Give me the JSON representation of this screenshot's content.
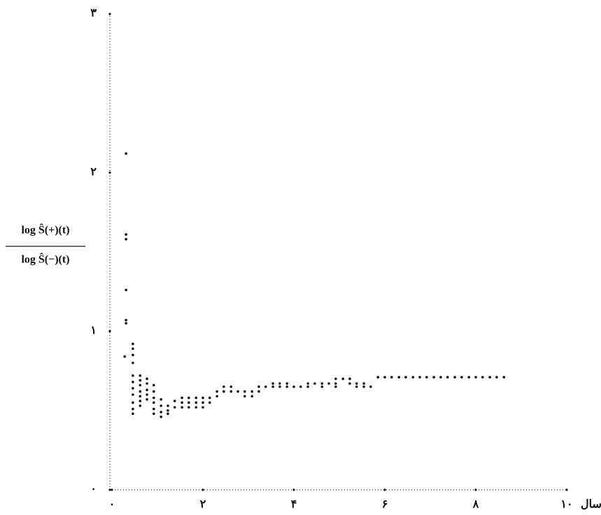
{
  "chart_data": {
    "type": "scatter",
    "ylabel_numerator": "log Ŝ(+)(t)",
    "ylabel_denominator": "log Ŝ(−)(t)",
    "xlabel": "سال",
    "xlim": [
      0,
      10
    ],
    "ylim": [
      0,
      3
    ],
    "xticks": [
      {
        "value": 0,
        "label": "۰"
      },
      {
        "value": 2,
        "label": "۲"
      },
      {
        "value": 4,
        "label": "۴"
      },
      {
        "value": 6,
        "label": "۶"
      },
      {
        "value": 8,
        "label": "۸"
      },
      {
        "value": 10,
        "label": "۱۰"
      }
    ],
    "yticks": [
      {
        "value": 0,
        "label": "۰"
      },
      {
        "value": 1,
        "label": "۱"
      },
      {
        "value": 2,
        "label": "۲"
      },
      {
        "value": 3,
        "label": "۳"
      }
    ],
    "color": "#111111",
    "x": [
      0.31,
      0.31,
      0.31,
      0.31,
      0.31,
      0.31,
      0.28,
      0.46,
      0.46,
      0.46,
      0.46,
      0.46,
      0.46,
      0.46,
      0.46,
      0.46,
      0.46,
      0.46,
      0.62,
      0.62,
      0.62,
      0.62,
      0.62,
      0.62,
      0.62,
      0.77,
      0.77,
      0.77,
      0.77,
      0.77,
      0.92,
      0.92,
      0.92,
      0.92,
      0.92,
      0.92,
      1.08,
      1.08,
      1.08,
      1.08,
      1.23,
      1.23,
      1.23,
      1.38,
      1.38,
      1.54,
      1.54,
      1.54,
      1.69,
      1.69,
      1.69,
      1.85,
      1.85,
      1.85,
      2.0,
      2.0,
      2.0,
      2.15,
      2.15,
      2.31,
      2.31,
      2.46,
      2.46,
      2.62,
      2.62,
      2.77,
      2.92,
      2.92,
      3.08,
      3.08,
      3.23,
      3.23,
      3.38,
      3.54,
      3.54,
      3.69,
      3.69,
      3.85,
      3.85,
      4.0,
      4.15,
      4.31,
      4.31,
      4.46,
      4.62,
      4.62,
      4.77,
      4.92,
      4.92,
      4.92,
      5.08,
      5.23,
      5.23,
      5.38,
      5.38,
      5.54,
      5.54,
      5.69,
      5.85,
      6.0,
      6.15,
      6.31,
      6.46,
      6.62,
      6.77,
      6.92,
      7.08,
      7.23,
      7.38,
      7.54,
      7.69,
      7.85,
      8.0,
      8.15,
      8.31,
      8.46,
      8.62
    ],
    "values": [
      2.12,
      1.61,
      1.58,
      1.26,
      1.07,
      1.05,
      0.84,
      0.92,
      0.89,
      0.85,
      0.8,
      0.72,
      0.68,
      0.64,
      0.6,
      0.55,
      0.51,
      0.48,
      0.72,
      0.69,
      0.66,
      0.62,
      0.59,
      0.56,
      0.53,
      0.7,
      0.67,
      0.63,
      0.6,
      0.57,
      0.66,
      0.62,
      0.58,
      0.55,
      0.51,
      0.48,
      0.57,
      0.53,
      0.49,
      0.46,
      0.53,
      0.5,
      0.48,
      0.56,
      0.52,
      0.58,
      0.55,
      0.52,
      0.58,
      0.55,
      0.52,
      0.58,
      0.55,
      0.52,
      0.58,
      0.55,
      0.52,
      0.58,
      0.55,
      0.62,
      0.59,
      0.65,
      0.62,
      0.65,
      0.62,
      0.62,
      0.62,
      0.59,
      0.62,
      0.59,
      0.65,
      0.62,
      0.65,
      0.67,
      0.65,
      0.67,
      0.65,
      0.67,
      0.65,
      0.65,
      0.65,
      0.67,
      0.65,
      0.67,
      0.67,
      0.65,
      0.67,
      0.7,
      0.67,
      0.65,
      0.7,
      0.7,
      0.67,
      0.67,
      0.65,
      0.67,
      0.65,
      0.65,
      0.71,
      0.71,
      0.71,
      0.71,
      0.71,
      0.71,
      0.71,
      0.71,
      0.71,
      0.71,
      0.71,
      0.71,
      0.71,
      0.71,
      0.71,
      0.71,
      0.71,
      0.71,
      0.71
    ]
  }
}
